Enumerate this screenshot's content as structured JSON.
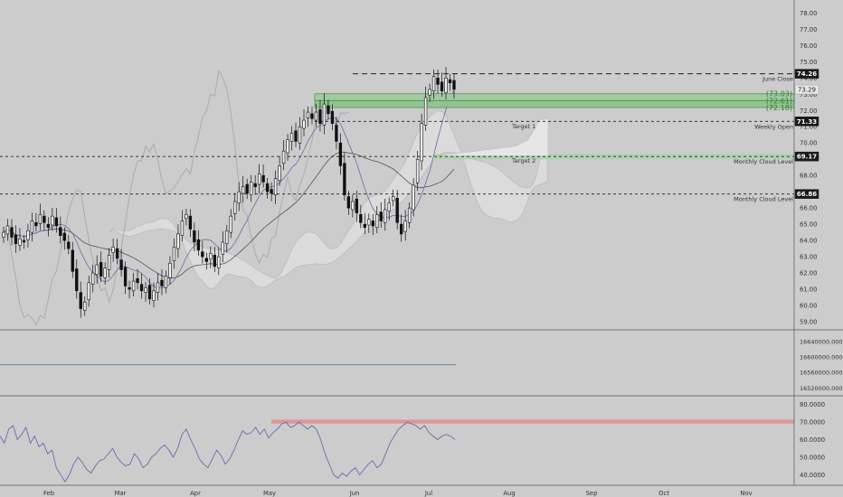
{
  "chart_data": [
    {
      "type": "line",
      "title": "",
      "xlabel": "",
      "ylabel": "",
      "ylim": [
        58.5,
        78.8
      ],
      "months": [
        "Feb",
        "Mar",
        "Apr",
        "May",
        "Jun",
        "Jul",
        "Aug",
        "Sep",
        "Oct",
        "Nov"
      ],
      "y_ticks": [
        "59.00",
        "60.00",
        "61.00",
        "62.00",
        "63.00",
        "64.00",
        "65.00",
        "66.00",
        "67.00",
        "68.00",
        "69.00",
        "70.00",
        "71.00",
        "72.00",
        "73.00",
        "74.00",
        "75.00",
        "76.00",
        "77.00",
        "78.00"
      ],
      "price_labels": [
        {
          "value": 74.26,
          "text": "74.26",
          "style": "dark"
        },
        {
          "value": 73.29,
          "text": "73.29",
          "style": "light"
        },
        {
          "value": 71.33,
          "text": "71.33",
          "style": "dark"
        },
        {
          "value": 69.17,
          "text": "69.17",
          "style": "dark"
        },
        {
          "value": 66.86,
          "text": "66.86",
          "style": "dark"
        }
      ],
      "levels": [
        {
          "value": 74.26,
          "label": "June Close"
        },
        {
          "value": 71.33,
          "label": "Weekly Open"
        },
        {
          "value": 69.17,
          "label": "Monthly Cloud Level"
        },
        {
          "value": 66.86,
          "label": "Monthly Cloud Level"
        }
      ],
      "zone": {
        "top": 73.03,
        "mid": 72.61,
        "bottom": 72.18,
        "labels": [
          "(73.03)",
          "(72.61)",
          "(72.18)"
        ]
      },
      "targets": [
        {
          "label": "Target 1",
          "value": 71.0
        },
        {
          "label": "Target 2",
          "value": 68.9
        }
      ],
      "candles_close": [
        64.5,
        64.9,
        64.2,
        63.8,
        64.1,
        63.9,
        64.6,
        65.2,
        64.9,
        65.6,
        65.1,
        64.8,
        65.5,
        64.9,
        64.3,
        64.0,
        63.5,
        62.1,
        60.9,
        59.8,
        60.2,
        61.4,
        62.0,
        62.5,
        61.8,
        62.3,
        63.1,
        63.6,
        62.9,
        62.2,
        61.2,
        61.0,
        61.5,
        61.4,
        60.9,
        61.1,
        60.4,
        60.9,
        61.4,
        61.2,
        61.8,
        62.6,
        63.6,
        64.4,
        65.2,
        65.6,
        64.7,
        63.9,
        63.4,
        63.0,
        62.7,
        63.2,
        62.4,
        63.0,
        63.9,
        64.6,
        65.5,
        66.4,
        67.0,
        67.3,
        66.9,
        67.6,
        67.3,
        68.1,
        67.6,
        67.0,
        66.9,
        67.8,
        68.6,
        69.5,
        70.2,
        70.6,
        70.1,
        71.0,
        71.4,
        71.9,
        71.5,
        71.9,
        71.2,
        72.4,
        71.8,
        71.2,
        70.1,
        68.6,
        66.8,
        66.0,
        66.4,
        65.7,
        65.1,
        64.8,
        65.3,
        64.9,
        65.6,
        65.2,
        65.9,
        66.3,
        66.7,
        65.1,
        64.4,
        65.2,
        66.0,
        67.4,
        69.0,
        71.2,
        72.8,
        73.3,
        74.1,
        73.6,
        73.2,
        74.0,
        73.7,
        73.3
      ]
    },
    {
      "type": "line",
      "y_ticks": [
        "16640000.0000",
        "16600000.0000",
        "16560000.0000",
        "16520000.0000"
      ],
      "ylim": [
        16500000,
        16670000
      ],
      "values": [
        16580000
      ]
    },
    {
      "type": "line",
      "y_ticks": [
        "80.0000",
        "70.0000",
        "60.0000",
        "50.0000",
        "40.0000"
      ],
      "ylim": [
        34,
        85
      ],
      "band": [
        69.2,
        71.4
      ],
      "values": [
        62,
        58,
        66,
        68,
        60,
        63,
        67,
        58,
        62,
        56,
        58,
        52,
        54,
        44,
        40,
        36,
        40,
        46,
        50,
        47,
        43,
        41,
        45,
        48,
        49,
        52,
        55,
        50,
        47,
        45,
        46,
        52,
        49,
        44,
        46,
        50,
        52,
        55,
        57,
        54,
        50,
        55,
        63,
        66,
        60,
        55,
        49,
        46,
        44,
        49,
        54,
        51,
        46,
        49,
        54,
        60,
        65,
        63,
        64,
        67,
        63,
        66,
        61,
        64,
        66,
        69,
        70,
        67,
        68,
        70,
        68,
        66,
        68,
        66,
        60,
        52,
        46,
        40,
        38,
        41,
        39,
        42,
        44,
        40,
        43,
        46,
        48,
        44,
        46,
        52,
        58,
        62,
        66,
        68,
        70,
        69,
        68,
        66,
        68,
        64,
        62,
        60,
        62,
        63,
        62,
        60
      ]
    }
  ]
}
